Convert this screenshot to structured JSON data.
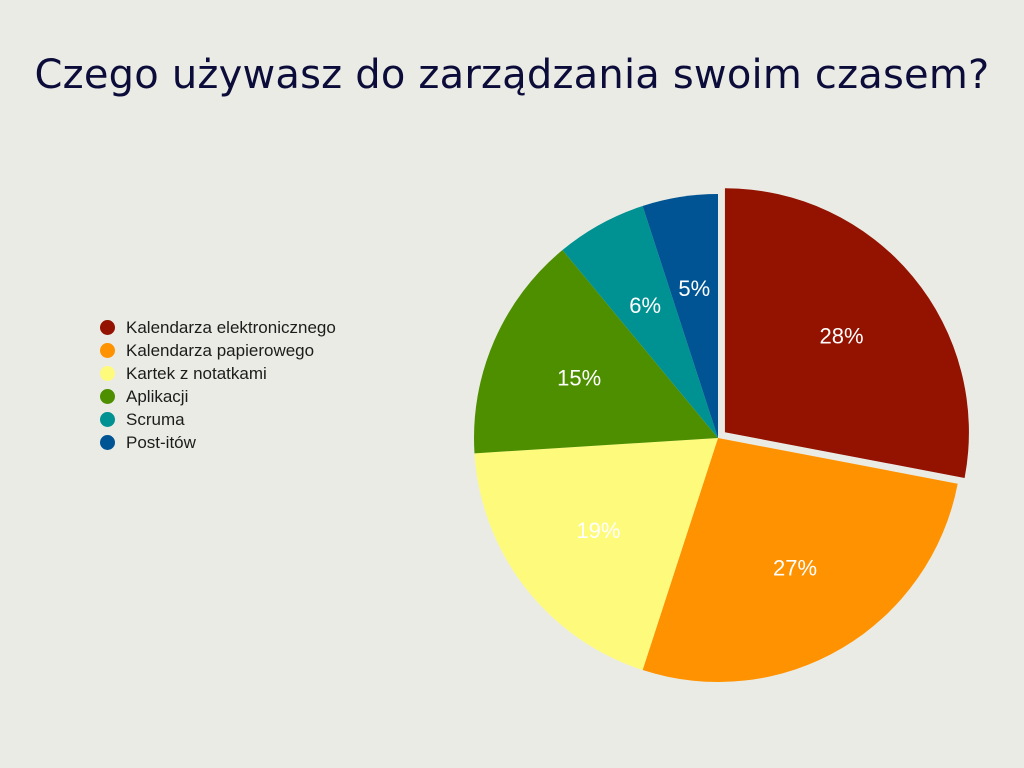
{
  "title": "Czego używasz do zarządzania swoim czasem?",
  "chart_data": {
    "type": "pie",
    "title": "Czego używasz do zarządzania swoim czasem?",
    "legend_position": "left",
    "categories": [
      "Kalendarza elektronicznego",
      "Kalendarza papierowego",
      "Kartek z notatkami",
      "Aplikacji",
      "Scruma",
      "Post-itów"
    ],
    "values": [
      28,
      27,
      19,
      15,
      6,
      5
    ],
    "labels": [
      "28%",
      "27%",
      "19%",
      "15%",
      "6%",
      "5%"
    ],
    "colors": [
      "#931200",
      "#ff9200",
      "#fefb7c",
      "#4e8f00",
      "#009193",
      "#005493"
    ],
    "exploded": "Kalendarza elektronicznego"
  }
}
